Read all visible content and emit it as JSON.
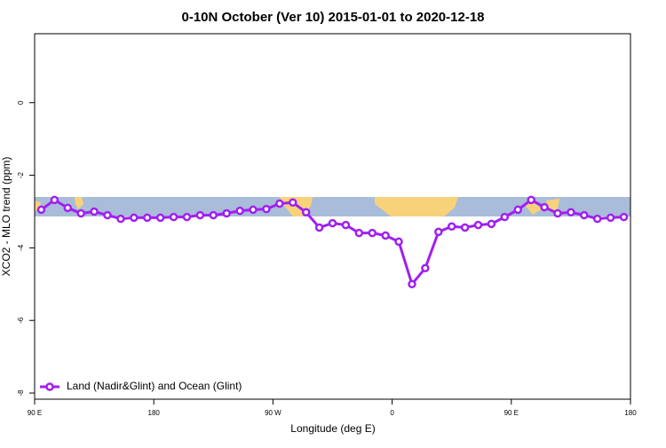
{
  "chart_data": {
    "type": "line",
    "title": "0-10N October (Ver 10)   2015-01-01 to 2020-12-18",
    "x_label": "Longitude (deg E)",
    "y_label": "XCO2 - MLO trend (ppm)",
    "x": [
      95,
      105,
      115,
      125,
      135,
      145,
      155,
      165,
      175,
      185,
      195,
      205,
      215,
      225,
      235,
      245,
      255,
      265,
      275,
      285,
      295,
      305,
      315,
      325,
      335,
      345,
      355,
      365,
      375,
      385,
      395,
      405,
      415,
      425,
      435,
      445,
      455,
      465,
      475,
      485,
      495,
      505,
      515,
      525,
      535
    ],
    "series": [
      {
        "name": "Land (Nadir&Glint) and Ocean (Glint)",
        "color": "#a020f0",
        "values": [
          -2.95,
          -2.68,
          -2.9,
          -3.05,
          -3.0,
          -3.1,
          -3.2,
          -3.17,
          -3.17,
          -3.17,
          -3.15,
          -3.15,
          -3.1,
          -3.1,
          -3.05,
          -2.98,
          -2.95,
          -2.93,
          -2.78,
          -2.75,
          -3.02,
          -3.44,
          -3.32,
          -3.37,
          -3.59,
          -3.59,
          -3.66,
          -3.83,
          -5.0,
          -4.56,
          -3.56,
          -3.41,
          -3.44,
          -3.37,
          -3.34,
          -3.15,
          -2.95,
          -2.68,
          -2.88,
          -3.05,
          -3.02,
          -3.1,
          -3.2,
          -3.17,
          -3.15
        ]
      }
    ],
    "xlim": [
      90,
      540
    ],
    "xticks": [
      {
        "value": 90,
        "label": "90 E"
      },
      180,
      {
        "value": 270,
        "label": "90 W"
      },
      {
        "value": 360,
        "label": "0"
      },
      {
        "value": 450,
        "label": "90 E"
      },
      {
        "value": 540,
        "label": "180"
      }
    ],
    "ylim": [
      -8.17,
      1.9
    ],
    "yticks": [
      0,
      -2,
      -4,
      -6,
      -8
    ],
    "legend": "bottom-left"
  }
}
